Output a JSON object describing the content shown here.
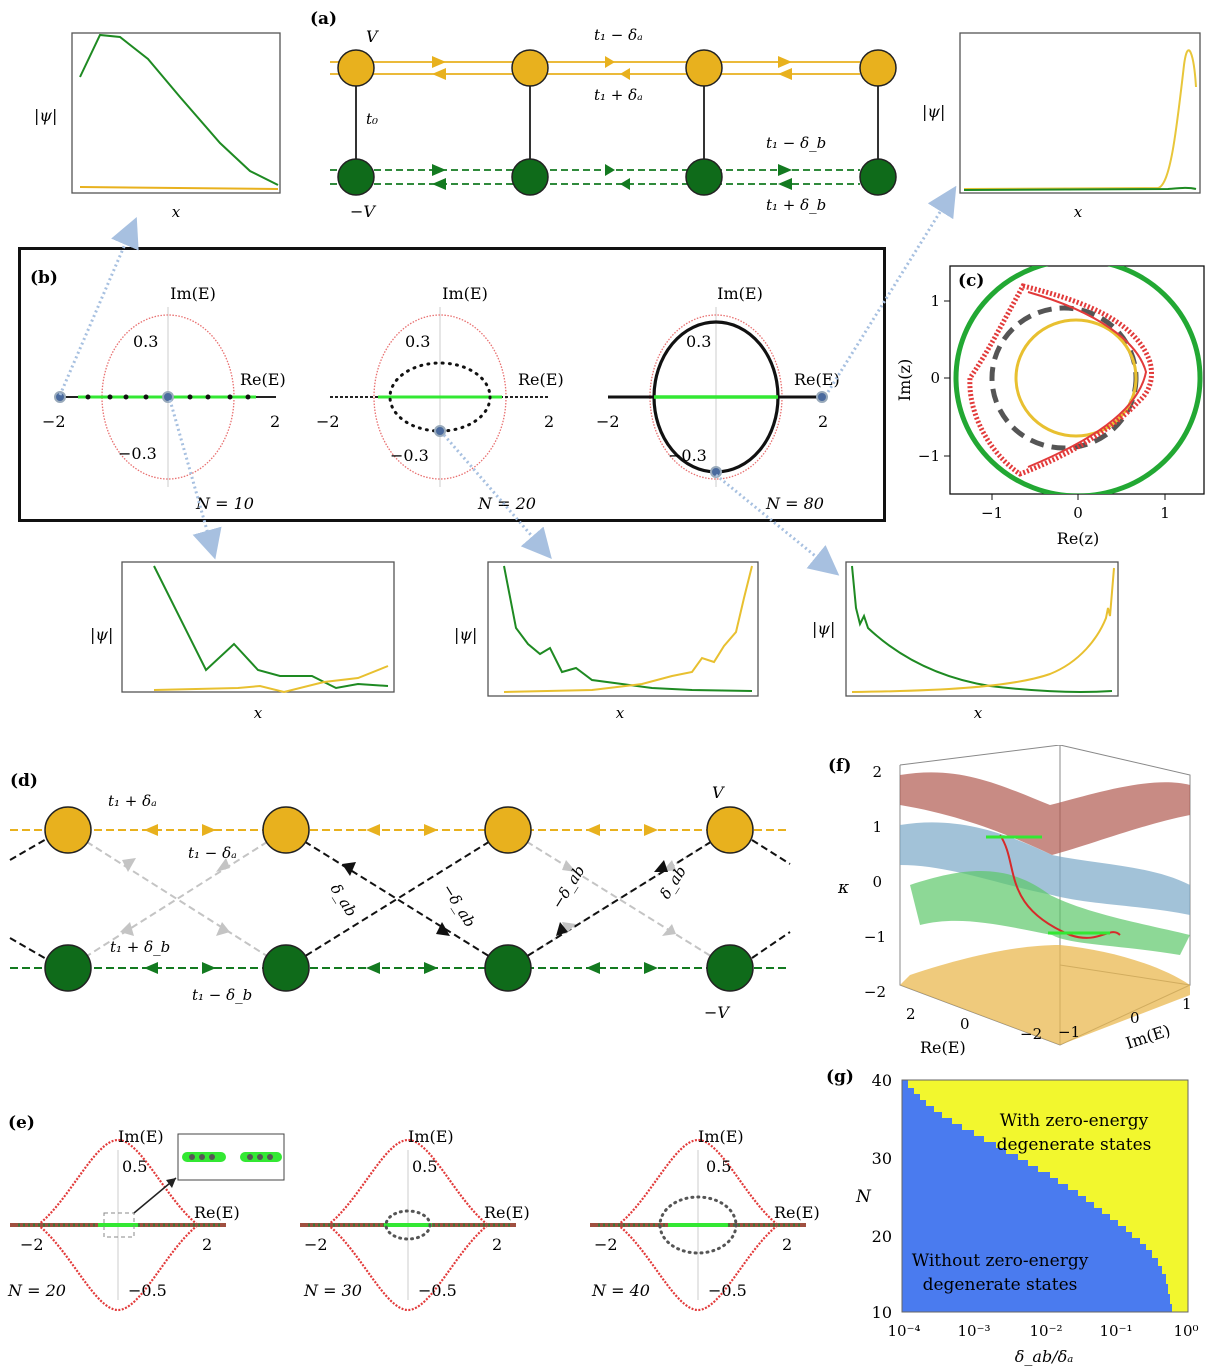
{
  "panels": {
    "a": {
      "label": "(a)",
      "top_site": "V",
      "bottom_site": "−V",
      "t0": "t₀",
      "hop_top_minus": "t₁ − δₐ",
      "hop_top_plus": "t₁ + δₐ",
      "hop_bot_minus": "t₁ − δ_b",
      "hop_bot_plus": "t₁ + δ_b",
      "psi_label": "|ψ|",
      "x_label": "x"
    },
    "b": {
      "label": "(b)",
      "im_label": "Im(E)",
      "re_label": "Re(E)",
      "tick_pos": "0.3",
      "tick_neg": "−0.3",
      "tick_m2": "−2",
      "tick_p2": "2",
      "n_labels": [
        "N = 10",
        "N = 20",
        "N = 80"
      ],
      "psi_label": "|ψ|",
      "x_label": "x"
    },
    "c": {
      "label": "(c)",
      "xlabel": "Re(z)",
      "ylabel": "Im(z)",
      "xticks": [
        "−1",
        "0",
        "1"
      ],
      "yticks": [
        "1",
        "0",
        "−1"
      ]
    },
    "d": {
      "label": "(d)",
      "t1_plus_da": "t₁ + δₐ",
      "t1_minus_da": "t₁ − δₐ",
      "t1_plus_db": "t₁ + δ_b",
      "t1_minus_db": "t₁ − δ_b",
      "dab": "δ_ab",
      "neg_dab1": "−δ_ab",
      "neg_dab2": "−δ_ab",
      "dab2": "δ_ab",
      "V": "V",
      "negV": "−V"
    },
    "e": {
      "label": "(e)",
      "im_label": "Im(E)",
      "re_label": "Re(E)",
      "tick_pos": "0.5",
      "tick_neg": "−0.5",
      "tick_m2": "−2",
      "tick_p2": "2",
      "n_labels": [
        "N = 20",
        "N = 30",
        "N = 40"
      ]
    },
    "f": {
      "label": "(f)",
      "zlabel": "κ",
      "zticks": [
        "2",
        "1",
        "0",
        "−1",
        "−2"
      ],
      "re_label": "Re(E)",
      "re_ticks": [
        "2",
        "0",
        "−2"
      ],
      "im_label": "Im(E)",
      "im_ticks": [
        "−1",
        "0",
        "1"
      ]
    },
    "g": {
      "label": "(g)",
      "ylabel": "N",
      "xlabel": "δ_ab/δₐ",
      "yticks": [
        "40",
        "30",
        "20",
        "10"
      ],
      "xticks": [
        "10⁻⁴",
        "10⁻³",
        "10⁻²",
        "10⁻¹",
        "10⁰"
      ],
      "upper_text_1": "With zero-energy",
      "upper_text_2": "degenerate states",
      "lower_text_1": "Without zero-energy",
      "lower_text_2": "degenerate states"
    }
  },
  "colors": {
    "gold": "#e8b11e",
    "green": "#0f6b1a",
    "bright_green": "#33e833",
    "red": "#e23a3a",
    "blue_fill": "#4a7bef",
    "yellow_fill": "#f2f72e"
  }
}
